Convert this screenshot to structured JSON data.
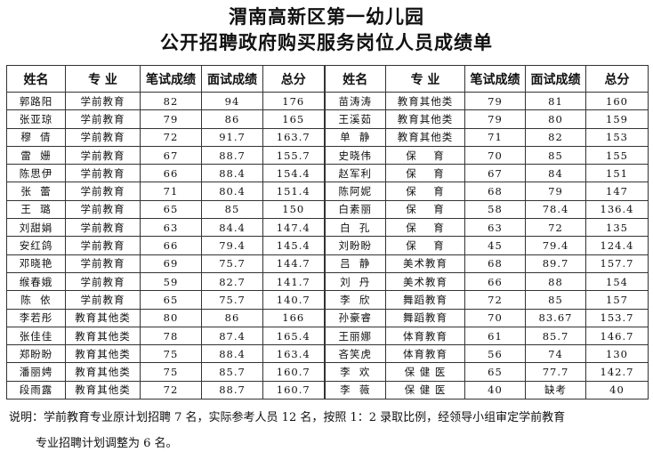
{
  "title": {
    "line1": "渭南高新区第一幼儿园",
    "line2": "公开招聘政府购买服务岗位人员成绩单"
  },
  "table": {
    "headers": [
      "姓名",
      "专  业",
      "笔试成绩",
      "面试成绩",
      "总分",
      "姓名",
      "专  业",
      "笔试成绩",
      "面试成绩",
      "总分"
    ],
    "rows": [
      [
        "郭路阳",
        "学前教育",
        "82",
        "94",
        "176",
        "苗涛涛",
        "教育其他类",
        "79",
        "81",
        "160"
      ],
      [
        "张亚琼",
        "学前教育",
        "79",
        "86",
        "165",
        "王溪茹",
        "教育其他类",
        "79",
        "80",
        "159"
      ],
      [
        "穆  倩",
        "学前教育",
        "72",
        "91.7",
        "163.7",
        "单  静",
        "教育其他类",
        "71",
        "82",
        "153"
      ],
      [
        "雷  姗",
        "学前教育",
        "67",
        "88.7",
        "155.7",
        "史晓伟",
        "保    育",
        "70",
        "85",
        "155"
      ],
      [
        "陈思伊",
        "学前教育",
        "66",
        "88.4",
        "154.4",
        "赵军利",
        "保    育",
        "67",
        "84",
        "151"
      ],
      [
        "张  蕾",
        "学前教育",
        "71",
        "80.4",
        "151.4",
        "陈阿妮",
        "保    育",
        "68",
        "79",
        "147"
      ],
      [
        "王  璐",
        "学前教育",
        "65",
        "85",
        "150",
        "白素丽",
        "保    育",
        "58",
        "78.4",
        "136.4"
      ],
      [
        "刘甜娟",
        "学前教育",
        "63",
        "84.4",
        "147.4",
        "白  孔",
        "保    育",
        "63",
        "72",
        "135"
      ],
      [
        "安红鸽",
        "学前教育",
        "66",
        "79.4",
        "145.4",
        "刘盼盼",
        "保    育",
        "45",
        "79.4",
        "124.4"
      ],
      [
        "邓晓艳",
        "学前教育",
        "69",
        "75.7",
        "144.7",
        "吕  静",
        "美术教育",
        "68",
        "89.7",
        "157.7"
      ],
      [
        "缑春娥",
        "学前教育",
        "59",
        "82.7",
        "141.7",
        "刘  丹",
        "美术教育",
        "66",
        "88",
        "154"
      ],
      [
        "陈  依",
        "学前教育",
        "65",
        "75.7",
        "140.7",
        "李  欣",
        "舞蹈教育",
        "72",
        "85",
        "157"
      ],
      [
        "李若彤",
        "教育其他类",
        "80",
        "86",
        "166",
        "孙豪睿",
        "舞蹈教育",
        "70",
        "83.67",
        "153.7"
      ],
      [
        "张佳佳",
        "教育其他类",
        "78",
        "87.4",
        "165.4",
        "王丽娜",
        "体育教育",
        "61",
        "85.7",
        "146.7"
      ],
      [
        "郑盼盼",
        "教育其他类",
        "75",
        "88.4",
        "163.4",
        "吝笑虎",
        "体育教育",
        "56",
        "74",
        "130"
      ],
      [
        "潘丽娉",
        "教育其他类",
        "75",
        "85.7",
        "160.7",
        "李  欢",
        "保 健 医",
        "65",
        "77.7",
        "142.7"
      ],
      [
        "段雨露",
        "教育其他类",
        "72",
        "88.7",
        "160.7",
        "李  薇",
        "保 健 医",
        "40",
        "缺考",
        "40"
      ]
    ]
  },
  "note": {
    "line1": "说明：学前教育专业原计划招聘 7 名，实际参考人员 12 名，按照 1：2 录取比例，经领导小组审定学前教育",
    "line2": "专业招聘计划调整为 6 名。"
  }
}
